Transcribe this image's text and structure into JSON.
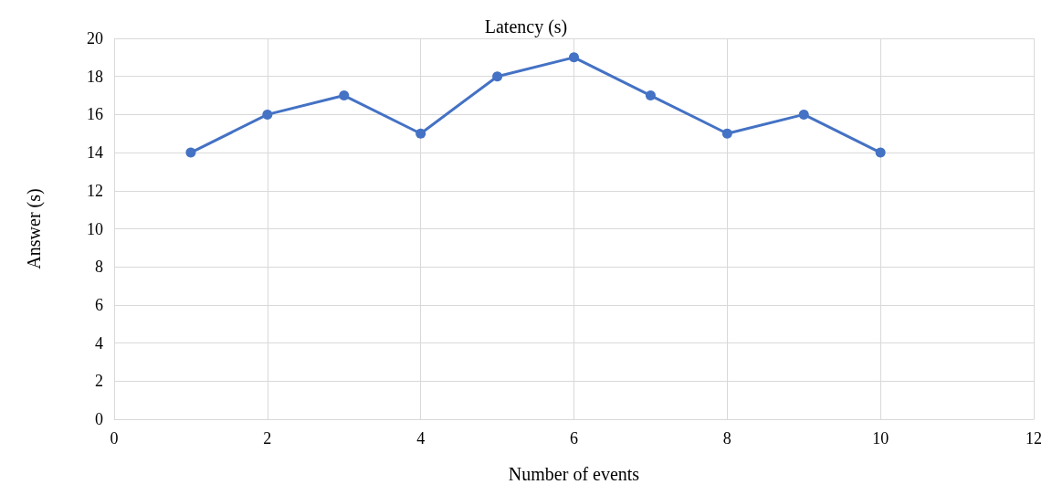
{
  "chart_data": {
    "type": "line",
    "title": "Latency (s)",
    "xlabel": "Number of events",
    "ylabel": "Answer (s)",
    "x": [
      1,
      2,
      3,
      4,
      5,
      6,
      7,
      8,
      9,
      10
    ],
    "series": [
      {
        "color": "#4472c4",
        "values": [
          14,
          16,
          17,
          15,
          18,
          19,
          17,
          15,
          16,
          14
        ]
      }
    ],
    "xlim": [
      0,
      12
    ],
    "xticks": [
      0,
      2,
      4,
      6,
      8,
      10,
      12
    ],
    "ylim": [
      0,
      20
    ],
    "yticks": [
      0,
      2,
      4,
      6,
      8,
      10,
      12,
      14,
      16,
      18,
      20
    ],
    "grid": true,
    "marker": "circle",
    "line_style": "solid"
  }
}
